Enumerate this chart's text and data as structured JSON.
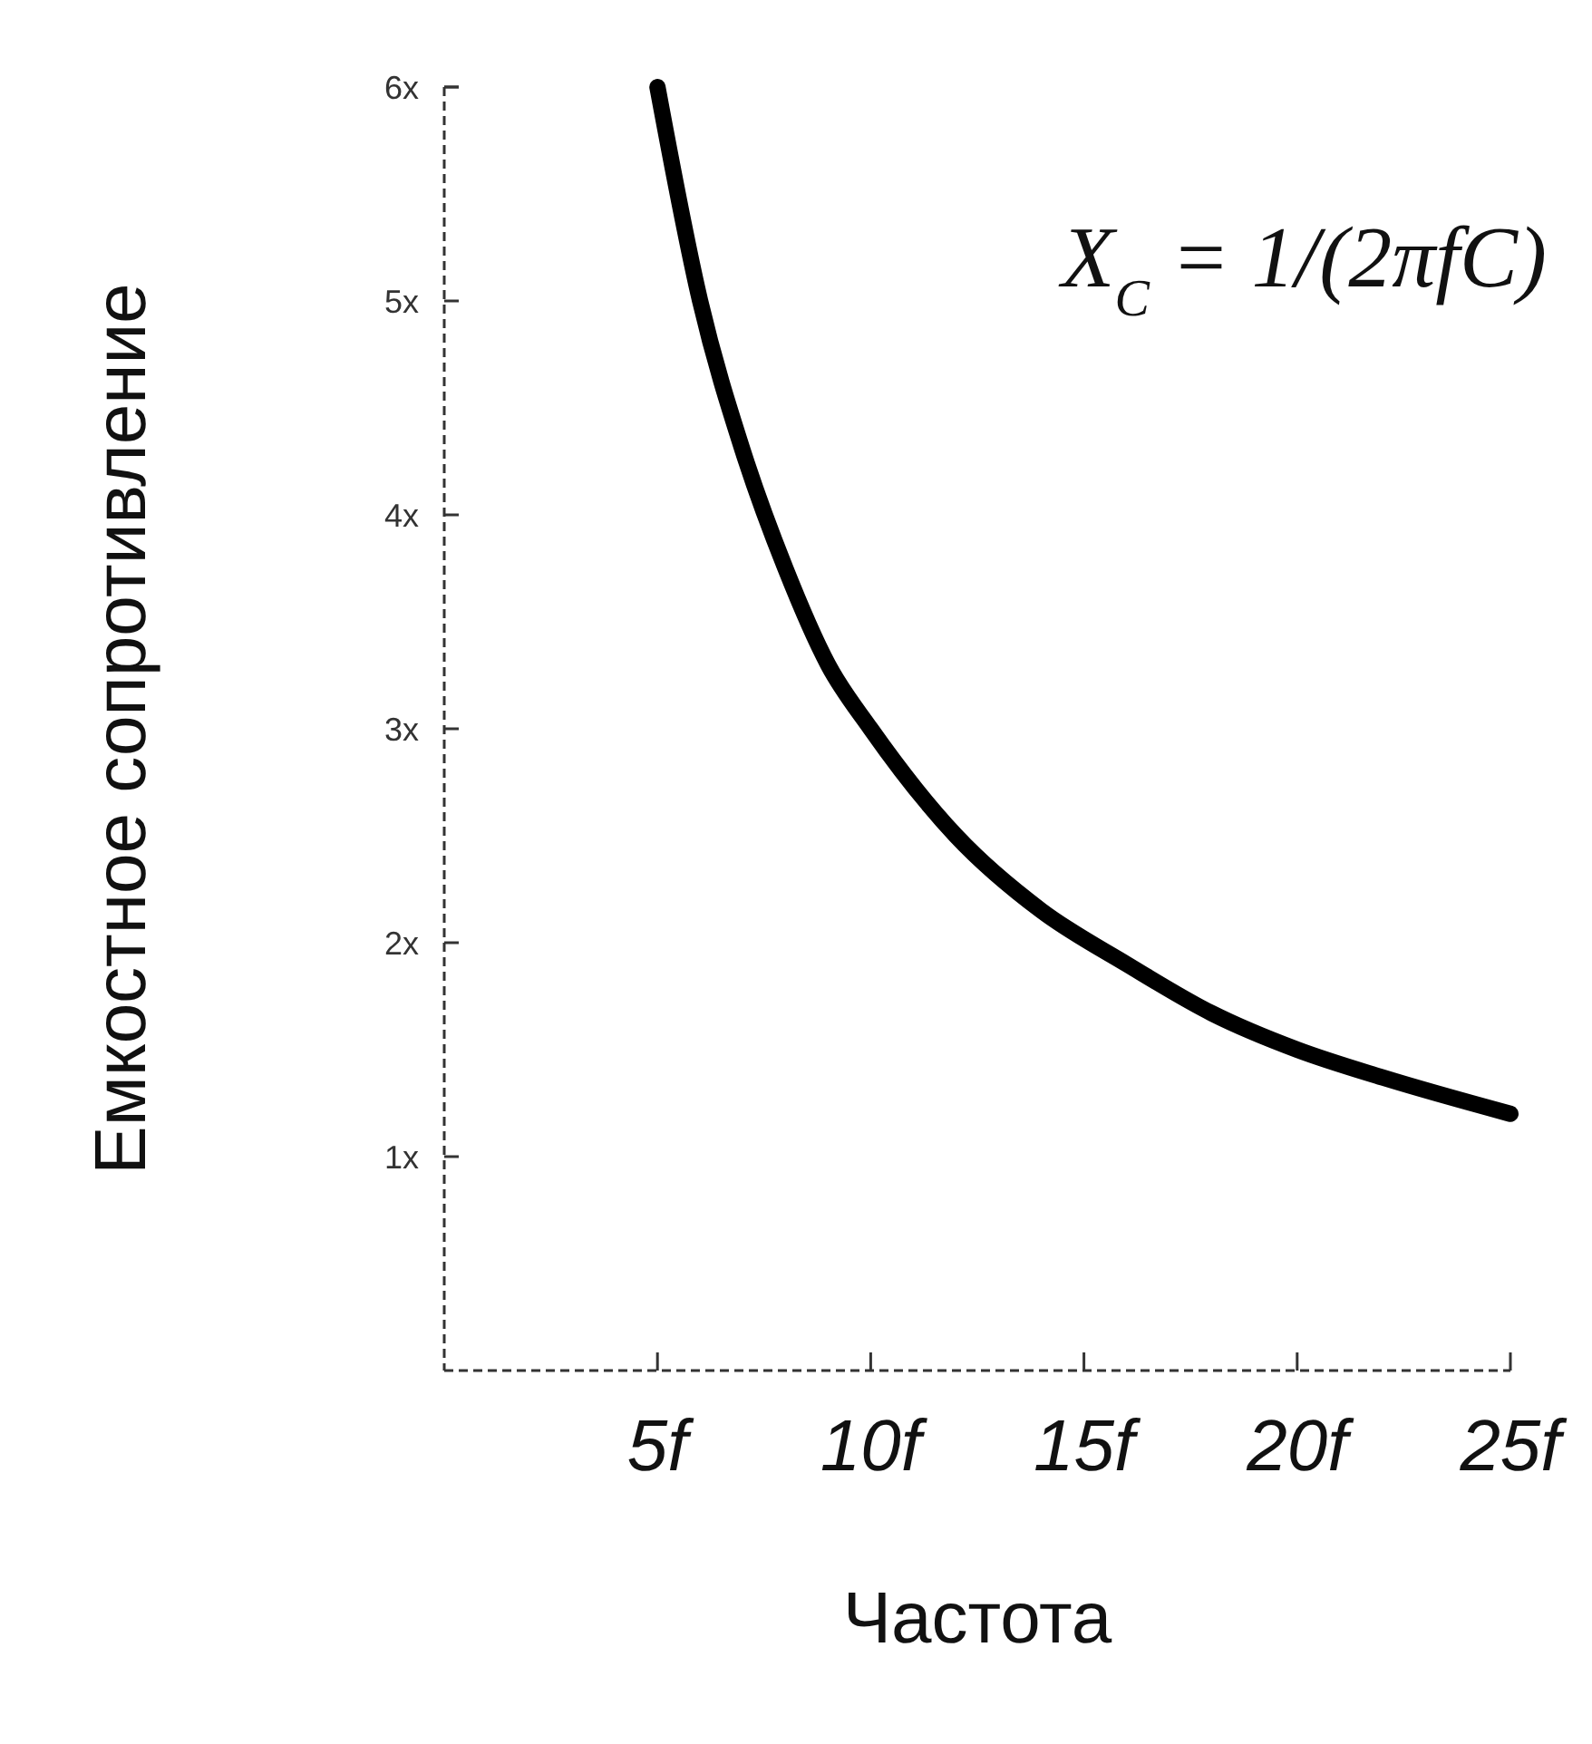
{
  "chart_data": {
    "type": "line",
    "xlabel": "Частота",
    "ylabel": "Емкостное сопротивление",
    "x": [
      5,
      6,
      7,
      8,
      9,
      10,
      12,
      14,
      16,
      18,
      20,
      22,
      25
    ],
    "series": [
      {
        "color": "#000000",
        "values": [
          6,
          5,
          4.3,
          3.75,
          3.3,
          3,
          2.5,
          2.15,
          1.9,
          1.67,
          1.5,
          1.37,
          1.2
        ]
      }
    ],
    "xlim": [
      0,
      25
    ],
    "xticks": [
      {
        "value": 5,
        "label": "5f"
      },
      {
        "value": 10,
        "label": "10f"
      },
      {
        "value": 15,
        "label": "15f"
      },
      {
        "value": 20,
        "label": "20f"
      },
      {
        "value": 25,
        "label": "25f"
      }
    ],
    "ylim": [
      0,
      6
    ],
    "yticks": [
      {
        "value": 1,
        "label": "1x"
      },
      {
        "value": 2,
        "label": "2x"
      },
      {
        "value": 3,
        "label": "3x"
      },
      {
        "value": 4,
        "label": "4x"
      },
      {
        "value": 5,
        "label": "5x"
      },
      {
        "value": 6,
        "label": "6x"
      }
    ],
    "grid": false,
    "marker": "none",
    "line_style": "solid",
    "annotations": [
      "X$_{C}$ = 1/(2πfC)"
    ]
  }
}
